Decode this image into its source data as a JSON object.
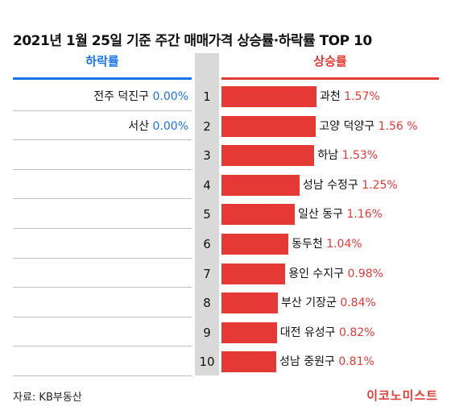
{
  "title": "2021년 1월 25일 기준 주간 매매가격 상승률·하락률 TOP 10",
  "left_header": "하락률",
  "right_header": "상승률",
  "source": "자료: KB부동산",
  "brand": "이코노미스트",
  "colors": {
    "decline": "#1a73e8",
    "increase": "#e53935",
    "rank_bg": "#d9d9d9"
  },
  "chart_data": {
    "type": "bar",
    "title": "2021년 1월 25일 기준 주간 매매가격 상승률·하락률 TOP 10",
    "decline": [
      {
        "rank": "1",
        "region": "전주 덕진구",
        "value": 0.0,
        "label": "0.00%"
      },
      {
        "rank": "2",
        "region": "서산",
        "value": 0.0,
        "label": "0.00%"
      }
    ],
    "increase": [
      {
        "rank": "1",
        "region": "과천",
        "value": 1.57,
        "label": "1.57%"
      },
      {
        "rank": "2",
        "region": "고양 덕양구",
        "value": 1.56,
        "label": "1.56 %"
      },
      {
        "rank": "3",
        "region": "하남",
        "value": 1.53,
        "label": "1.53%"
      },
      {
        "rank": "4",
        "region": "성남 수정구",
        "value": 1.25,
        "label": "1.25%"
      },
      {
        "rank": "5",
        "region": "일산 동구",
        "value": 1.16,
        "label": "1.16%"
      },
      {
        "rank": "6",
        "region": "동두천",
        "value": 1.04,
        "label": "1.04%"
      },
      {
        "rank": "7",
        "region": "용인 수지구",
        "value": 0.98,
        "label": "0.98%"
      },
      {
        "rank": "8",
        "region": "부산 기장군",
        "value": 0.84,
        "label": "0.84%"
      },
      {
        "rank": "9",
        "region": "대전 유성구",
        "value": 0.82,
        "label": "0.82%"
      },
      {
        "rank": "10",
        "region": "성남 중원구",
        "value": 0.81,
        "label": "0.81%"
      }
    ]
  }
}
